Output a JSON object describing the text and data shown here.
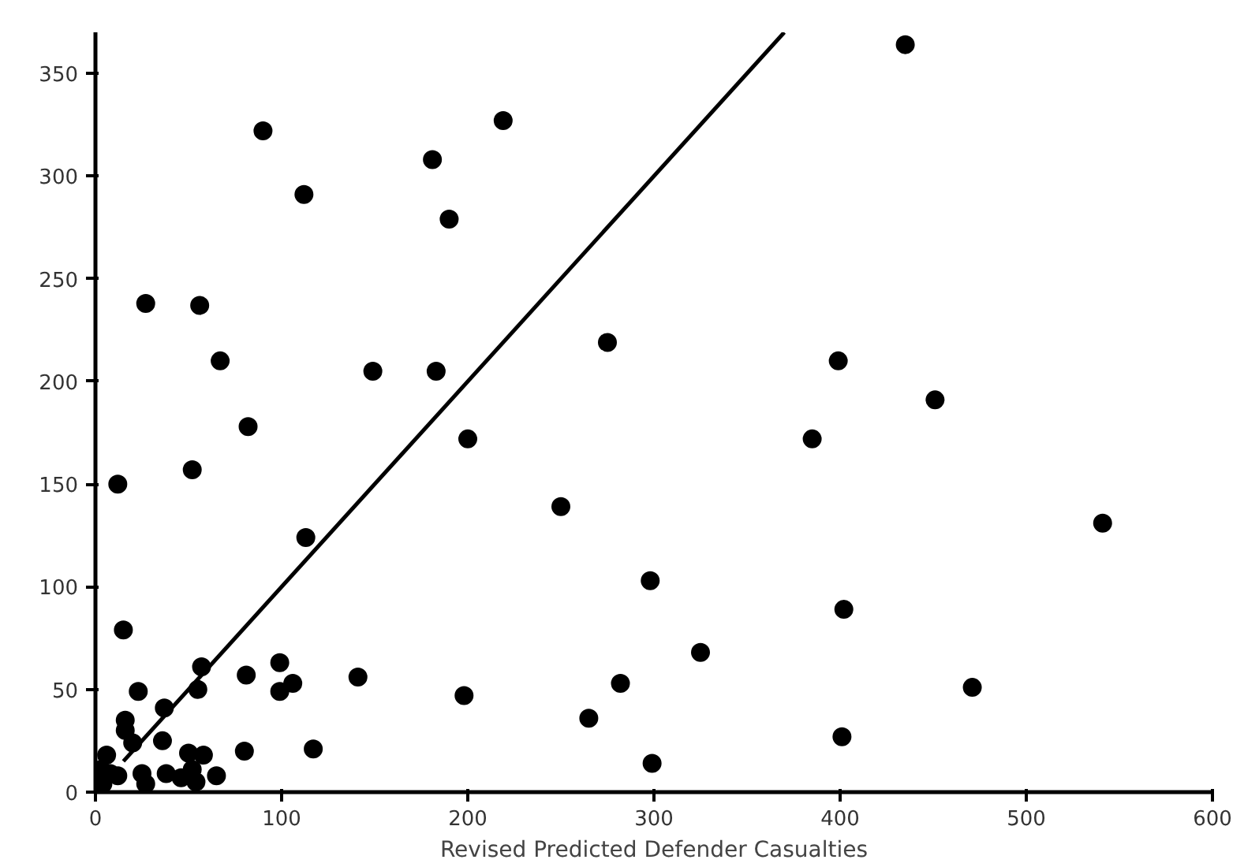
{
  "chart_data": {
    "type": "scatter",
    "xlabel": "Revised Predicted Defender Casualties",
    "xlim": [
      0,
      600
    ],
    "ylim": [
      0,
      370
    ],
    "xticks": [
      0,
      100,
      200,
      300,
      400,
      500,
      600
    ],
    "yticks": [
      0,
      50,
      100,
      150,
      200,
      250,
      300,
      350
    ],
    "grid": false,
    "series": [
      {
        "marker": "circle",
        "color": "#000000",
        "x": [
          90,
          112,
          181,
          219,
          190,
          27,
          56,
          67,
          149,
          183,
          82,
          12,
          52,
          200,
          113,
          250,
          15,
          57,
          55,
          23,
          81,
          99,
          99,
          106,
          141,
          198,
          265,
          117,
          80,
          36,
          37,
          16,
          16,
          20,
          6,
          3,
          8,
          4,
          25,
          27,
          38,
          46,
          50,
          58,
          52,
          54,
          65,
          12,
          435,
          275,
          399,
          451,
          385,
          541,
          298,
          402,
          325,
          282,
          471,
          401,
          299
        ],
        "values": [
          322,
          291,
          308,
          327,
          279,
          238,
          237,
          210,
          205,
          205,
          178,
          150,
          157,
          172,
          124,
          139,
          79,
          61,
          50,
          49,
          57,
          63,
          49,
          53,
          56,
          47,
          36,
          21,
          20,
          25,
          41,
          35,
          30,
          24,
          18,
          11,
          9,
          4,
          9,
          4,
          9,
          7,
          19,
          18,
          11,
          5,
          8,
          8,
          364,
          219,
          210,
          191,
          172,
          131,
          103,
          89,
          68,
          53,
          51,
          27,
          14
        ]
      },
      {
        "type": "line",
        "color": "#000000",
        "x": [
          15,
          370
        ],
        "values": [
          15,
          370
        ],
        "line_style": "solid"
      }
    ]
  }
}
